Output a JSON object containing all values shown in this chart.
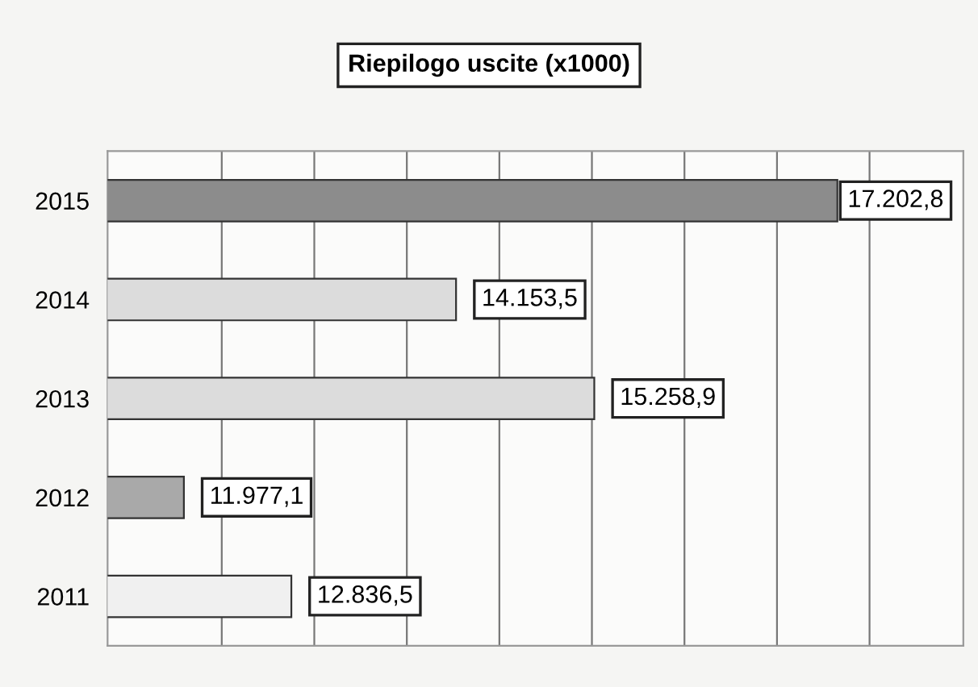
{
  "chart_data": {
    "type": "bar",
    "orientation": "horizontal",
    "title": "Riepilogo uscite (x1000)",
    "categories": [
      "2015",
      "2014",
      "2013",
      "2012",
      "2011"
    ],
    "values": [
      17202.8,
      14153.5,
      15258.9,
      11977.1,
      12836.5
    ],
    "value_labels": [
      "17.202,8",
      "14.153,5",
      "15.258,9",
      "11.977,1",
      "12.836,5"
    ],
    "colors": [
      "#8c8c8c",
      "#dcdcdc",
      "#dcdcdc",
      "#a9a9a9",
      "#f0f0f0"
    ],
    "xlim": [
      11367,
      18210
    ],
    "xticks": [
      {
        "value": 12280,
        "label": null
      },
      {
        "value": 13020,
        "label": null
      },
      {
        "value": 13760,
        "label": null
      },
      {
        "value": 14500,
        "label": null
      },
      {
        "value": 15240,
        "label": null
      },
      {
        "value": 15980,
        "label": null
      },
      {
        "value": 16720,
        "label": null
      },
      {
        "value": 17460,
        "label": null
      }
    ],
    "grid": "x",
    "legend": false
  }
}
